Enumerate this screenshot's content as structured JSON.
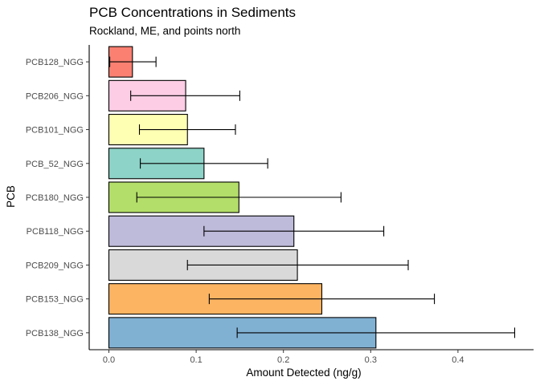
{
  "chart_data": {
    "type": "bar",
    "orientation": "horizontal",
    "title": "PCB Concentrations in Sediments",
    "subtitle": "Rockland, ME, and points north",
    "xlabel": "Amount Detected (ng/g)",
    "ylabel": "PCB",
    "xlim": [
      0,
      0.47
    ],
    "x_ticks": [
      0.0,
      0.1,
      0.2,
      0.3,
      0.4
    ],
    "x_tick_labels": [
      "0.0",
      "0.1",
      "0.2",
      "0.3",
      "0.4"
    ],
    "grid": false,
    "legend": "none",
    "categories": [
      "PCB138_NGG",
      "PCB153_NGG",
      "PCB209_NGG",
      "PCB118_NGG",
      "PCB180_NGG",
      "PCB_52_NGG",
      "PCB101_NGG",
      "PCB206_NGG",
      "PCB128_NGG"
    ],
    "values": [
      0.306,
      0.244,
      0.216,
      0.212,
      0.149,
      0.109,
      0.09,
      0.088,
      0.027
    ],
    "error_low": [
      0.147,
      0.115,
      0.09,
      0.109,
      0.032,
      0.036,
      0.035,
      0.025,
      0.001
    ],
    "error_high": [
      0.465,
      0.373,
      0.343,
      0.315,
      0.266,
      0.182,
      0.145,
      0.15,
      0.054
    ],
    "colors": [
      "#80b1d3",
      "#fdb462",
      "#d9d9d9",
      "#bebada",
      "#b3de69",
      "#8dd3c7",
      "#ffffb3",
      "#fccde5",
      "#fb8072"
    ],
    "outline_color": "#000000"
  }
}
